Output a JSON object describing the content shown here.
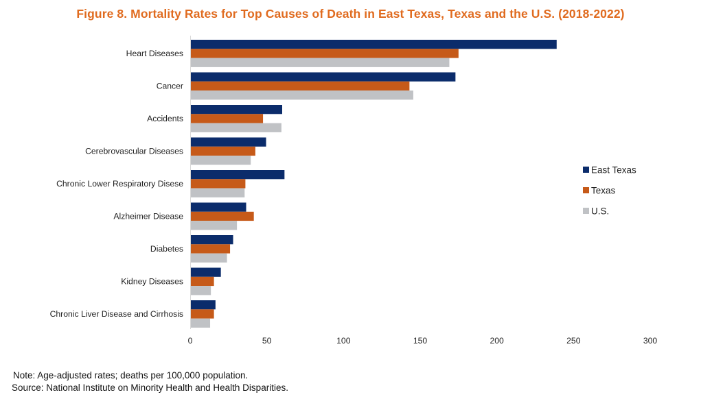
{
  "title": "Figure 8. Mortality Rates for Top Causes of Death in East Texas, Texas and the U.S. (2018-2022)",
  "title_color": "#e06b1f",
  "chart_data": {
    "type": "bar",
    "orientation": "horizontal",
    "title": "Figure 8. Mortality Rates for Top Causes of Death in East Texas, Texas and the U.S. (2018-2022)",
    "categories": [
      "Heart Diseases",
      "Cancer",
      "Accidents",
      "Cerebrovascular Diseases",
      "Chronic Lower Respiratory Disese",
      "Alzheimer Disease",
      "Diabetes",
      "Kidney Diseases",
      "Chronic Liver Disease and Cirrhosis"
    ],
    "series": [
      {
        "name": "East Texas",
        "color": "#0b2c6b",
        "values": [
          239,
          173,
          60,
          49.5,
          61.5,
          36.5,
          28,
          20,
          16.5
        ]
      },
      {
        "name": "Texas",
        "color": "#c65a19",
        "values": [
          175,
          143,
          47.5,
          42.5,
          36,
          41.5,
          26,
          15.5,
          15.5
        ]
      },
      {
        "name": "U.S.",
        "color": "#c0c2c5",
        "values": [
          169,
          145.5,
          59.5,
          39.5,
          35.5,
          30.5,
          24,
          13.5,
          13
        ]
      }
    ],
    "xlim": [
      0,
      300
    ],
    "xticks": [
      0,
      50,
      100,
      150,
      200,
      250,
      300
    ],
    "xlabel": "",
    "ylabel": "",
    "grid": false,
    "legend_position": "right"
  },
  "notes": {
    "note": "Note: Age-adjusted rates; deaths per 100,000 population.",
    "source": "Source: National Institute on Minority Health and Health Disparities."
  }
}
